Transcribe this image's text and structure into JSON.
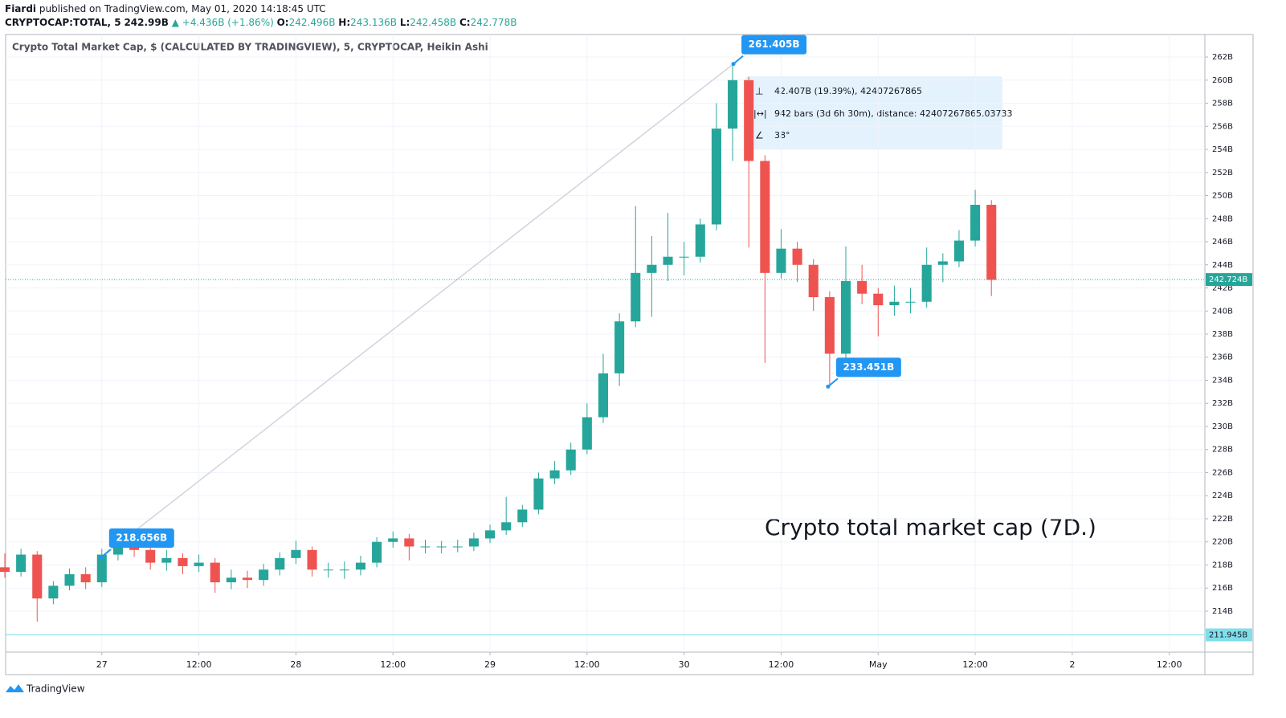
{
  "header": {
    "author": "Fiardi",
    "published": "published on TradingView.com, May 01, 2020 14:18:45 UTC",
    "symbol": "CRYPTOCAP:TOTAL, 5",
    "last": "242.99B",
    "arrow": "▲",
    "change": "+4.436B (+1.86%)",
    "ohlc": [
      {
        "key": "O:",
        "value": "242.496B"
      },
      {
        "key": "H:",
        "value": "243.136B"
      },
      {
        "key": "L:",
        "value": "242.458B"
      },
      {
        "key": "C:",
        "value": "242.778B"
      }
    ]
  },
  "chart_data": {
    "type": "candlestick",
    "title": "Crypto Total Market Cap, $ (CALCULATED BY TRADINGVIEW), 5, CRYPTOCAP, Heikin Ashi",
    "x": [
      -12,
      -10,
      -8,
      -6,
      -4,
      -2,
      0,
      2,
      4,
      6,
      8,
      10,
      12,
      14,
      16,
      18,
      20,
      22,
      24,
      26,
      28,
      30,
      32,
      34,
      36,
      38,
      40,
      42,
      44,
      46,
      48,
      50,
      52,
      54,
      56,
      58,
      60,
      62,
      64,
      66,
      68,
      70,
      72,
      74,
      76,
      78,
      80,
      82,
      84,
      86,
      88,
      90,
      92,
      94,
      96,
      98,
      100,
      102,
      104,
      106,
      108,
      110
    ],
    "open": [
      217.8,
      217.4,
      218.9,
      215.1,
      216.2,
      217.2,
      216.5,
      218.9,
      219.6,
      219.3,
      218.2,
      218.6,
      217.9,
      218.2,
      216.5,
      216.9,
      216.7,
      217.6,
      218.6,
      219.3,
      217.6,
      217.6,
      217.6,
      218.2,
      220.0,
      220.3,
      219.6,
      219.6,
      219.6,
      219.6,
      220.3,
      221.0,
      221.7,
      222.8,
      225.5,
      226.2,
      228.0,
      230.8,
      234.6,
      239.1,
      243.3,
      244.0,
      244.7,
      244.7,
      247.5,
      255.8,
      260.0,
      253.0,
      243.3,
      245.4,
      244.0,
      241.2,
      236.3,
      242.6,
      241.5,
      240.5,
      240.8,
      240.8,
      244.0,
      244.3,
      246.1,
      249.2
    ],
    "high": [
      219.0,
      219.4,
      219.2,
      216.6,
      217.7,
      217.8,
      219.4,
      220.7,
      220.3,
      219.8,
      219.3,
      219.0,
      218.9,
      218.6,
      217.6,
      217.5,
      218.1,
      219.1,
      220.1,
      219.6,
      218.2,
      218.3,
      218.8,
      220.4,
      220.9,
      220.7,
      220.2,
      220.1,
      220.2,
      220.8,
      221.5,
      223.9,
      223.2,
      226.0,
      227.0,
      228.6,
      232.0,
      236.3,
      239.8,
      249.1,
      246.5,
      248.5,
      246.0,
      248.0,
      258.0,
      261.405,
      260.3,
      253.5,
      247.1,
      246.0,
      244.5,
      241.7,
      245.6,
      244.0,
      242.0,
      242.2,
      242.0,
      245.5,
      245.0,
      247.0,
      250.5,
      249.6
    ],
    "low": [
      216.9,
      217.0,
      213.1,
      214.6,
      215.8,
      215.9,
      216.1,
      218.4,
      218.7,
      217.6,
      217.5,
      217.2,
      217.4,
      215.6,
      215.9,
      216.0,
      216.2,
      217.1,
      218.1,
      217.0,
      216.9,
      216.8,
      217.1,
      217.8,
      219.5,
      218.4,
      219.0,
      219.0,
      219.1,
      219.2,
      219.9,
      220.6,
      221.3,
      222.4,
      225.0,
      225.8,
      227.6,
      230.3,
      233.5,
      238.6,
      239.5,
      242.6,
      243.1,
      244.2,
      247.0,
      253.0,
      245.5,
      235.5,
      242.8,
      242.5,
      240.0,
      233.451,
      235.9,
      240.6,
      237.8,
      239.6,
      239.8,
      240.3,
      242.5,
      243.8,
      245.6,
      241.3
    ],
    "close": [
      217.4,
      218.9,
      215.1,
      216.2,
      217.2,
      216.5,
      218.9,
      219.6,
      219.3,
      218.2,
      218.6,
      217.9,
      218.2,
      216.5,
      216.9,
      216.7,
      217.6,
      218.6,
      219.3,
      217.6,
      217.6,
      217.6,
      218.2,
      220.0,
      220.3,
      219.6,
      219.6,
      219.6,
      219.6,
      220.3,
      221.0,
      221.7,
      222.8,
      225.5,
      226.2,
      228.0,
      230.8,
      234.6,
      239.1,
      243.3,
      244.0,
      244.7,
      244.7,
      247.5,
      255.8,
      260.0,
      253.0,
      243.3,
      245.4,
      244.0,
      241.2,
      236.3,
      242.6,
      241.5,
      240.5,
      240.8,
      240.8,
      244.0,
      244.3,
      246.1,
      249.2,
      242.7
    ],
    "up_color": "#26a69a",
    "down_color": "#ef5350",
    "xlim": [
      -11.9,
      136.4
    ],
    "ylim": [
      210.45,
      263.95
    ],
    "xticks": [
      {
        "value": 0,
        "label": "27"
      },
      {
        "value": 12,
        "label": "12:00"
      },
      {
        "value": 24,
        "label": "28"
      },
      {
        "value": 36,
        "label": "12:00"
      },
      {
        "value": 48,
        "label": "29"
      },
      {
        "value": 60,
        "label": "12:00"
      },
      {
        "value": 72,
        "label": "30"
      },
      {
        "value": 84,
        "label": "12:00"
      },
      {
        "value": 96,
        "label": "May"
      },
      {
        "value": 108,
        "label": "12:00"
      },
      {
        "value": 120,
        "label": "2"
      },
      {
        "value": 132,
        "label": "12:00"
      }
    ],
    "yticks": [
      {
        "value": 214,
        "label": "214B"
      },
      {
        "value": 216,
        "label": "216B"
      },
      {
        "value": 218,
        "label": "218B"
      },
      {
        "value": 220,
        "label": "220B"
      },
      {
        "value": 222,
        "label": "222B"
      },
      {
        "value": 224,
        "label": "224B"
      },
      {
        "value": 226,
        "label": "226B"
      },
      {
        "value": 228,
        "label": "228B"
      },
      {
        "value": 230,
        "label": "230B"
      },
      {
        "value": 232,
        "label": "232B"
      },
      {
        "value": 234,
        "label": "234B"
      },
      {
        "value": 236,
        "label": "236B"
      },
      {
        "value": 238,
        "label": "238B"
      },
      {
        "value": 240,
        "label": "240B"
      },
      {
        "value": 242,
        "label": "242B"
      },
      {
        "value": 244,
        "label": "244B"
      },
      {
        "value": 246,
        "label": "246B"
      },
      {
        "value": 248,
        "label": "248B"
      },
      {
        "value": 250,
        "label": "250B"
      },
      {
        "value": 252,
        "label": "252B"
      },
      {
        "value": 254,
        "label": "254B"
      },
      {
        "value": 256,
        "label": "256B"
      },
      {
        "value": 258,
        "label": "258B"
      },
      {
        "value": 260,
        "label": "260B"
      },
      {
        "value": 262,
        "label": "262B"
      }
    ],
    "grid": true,
    "price_lines": [
      {
        "value": 242.724,
        "label": "242.724B",
        "color": "#26a69a",
        "text_color": "#ffffff",
        "dashed": true
      },
      {
        "value": 211.945,
        "label": "211.945B",
        "color": "#80deea",
        "text_color": "#131722",
        "dashed": false
      }
    ],
    "trend_line": {
      "x": [
        -0.1,
        78.1
      ],
      "values": [
        218.656,
        261.405
      ],
      "value_labels": [
        "218.656B",
        "261.405B"
      ],
      "color": "#d1d4dc"
    },
    "point_labels": {
      "x": [
        89.8
      ],
      "values": [
        233.451
      ],
      "value_labels": [
        "233.451B"
      ]
    },
    "label_color": "#2196f3",
    "measure": [
      "42.407B (19.39%), 42407267865",
      "942 bars (3d 6h 30m), distance: 42407267865.03733",
      "38°"
    ],
    "annotation": "Crypto total market cap (7D.)"
  },
  "footer": {
    "brand": "TradingView"
  }
}
